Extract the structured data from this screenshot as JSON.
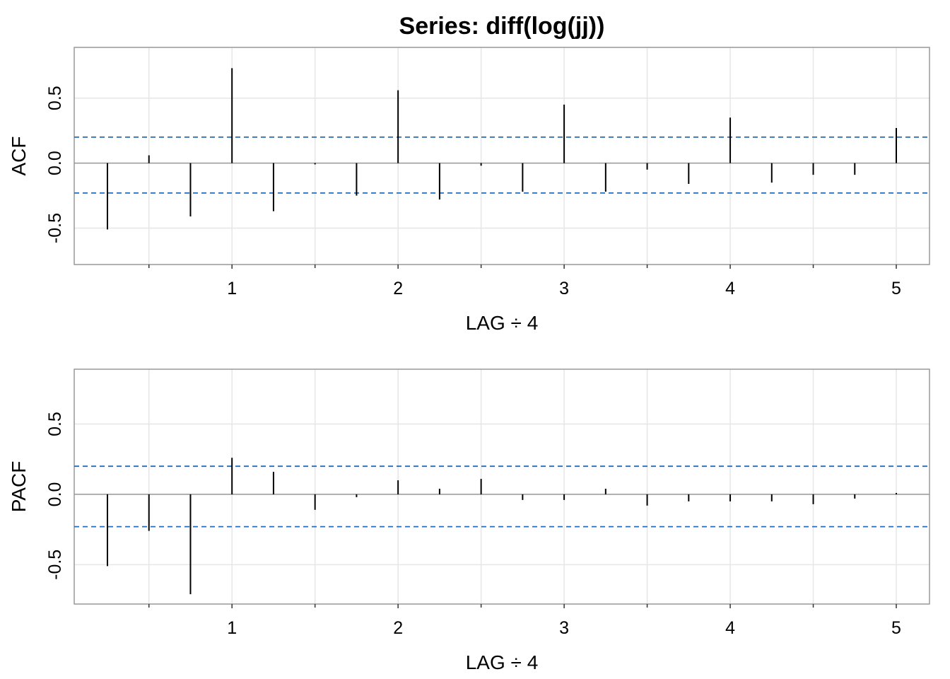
{
  "title": "Series:  diff(log(jj))",
  "colors": {
    "background": "#ffffff",
    "grid": "#e6e6e6",
    "frame": "#999999",
    "zero_line": "#9a9a9a",
    "bars": "#000000",
    "confidence_band": "#1e6ec8"
  },
  "chart_data": [
    {
      "type": "bar",
      "subtype": "autocorrelation",
      "xlabel": "LAG ÷ 4",
      "ylabel": "ACF",
      "xlim": [
        0.05,
        5.2
      ],
      "ylim": [
        -0.78,
        0.89
      ],
      "x_ticks": [
        1,
        2,
        3,
        4,
        5
      ],
      "x_tick_labels": [
        "1",
        "2",
        "3",
        "4",
        "5"
      ],
      "y_ticks": [
        -0.5,
        0.0,
        0.5
      ],
      "y_tick_labels": [
        "-0.5",
        "0.0",
        "0.5"
      ],
      "grid": true,
      "confidence_bounds": [
        0.2,
        -0.23
      ],
      "x": [
        0.25,
        0.5,
        0.75,
        1.0,
        1.25,
        1.5,
        1.75,
        2.0,
        2.25,
        2.5,
        2.75,
        3.0,
        3.25,
        3.5,
        3.75,
        4.0,
        4.25,
        4.5,
        4.75,
        5.0
      ],
      "values": [
        -0.51,
        0.06,
        -0.41,
        0.73,
        -0.37,
        -0.01,
        -0.25,
        0.56,
        -0.28,
        -0.02,
        -0.22,
        0.45,
        -0.22,
        -0.05,
        -0.16,
        0.35,
        -0.15,
        -0.09,
        -0.09,
        0.27
      ]
    },
    {
      "type": "bar",
      "subtype": "partial-autocorrelation",
      "xlabel": "LAG ÷ 4",
      "ylabel": "PACF",
      "xlim": [
        0.05,
        5.2
      ],
      "ylim": [
        -0.78,
        0.89
      ],
      "x_ticks": [
        1,
        2,
        3,
        4,
        5
      ],
      "x_tick_labels": [
        "1",
        "2",
        "3",
        "4",
        "5"
      ],
      "y_ticks": [
        -0.5,
        0.0,
        0.5
      ],
      "y_tick_labels": [
        "-0.5",
        "0.0",
        "0.5"
      ],
      "grid": true,
      "confidence_bounds": [
        0.2,
        -0.23
      ],
      "x": [
        0.25,
        0.5,
        0.75,
        1.0,
        1.25,
        1.5,
        1.75,
        2.0,
        2.25,
        2.5,
        2.75,
        3.0,
        3.25,
        3.5,
        3.75,
        4.0,
        4.25,
        4.5,
        4.75,
        5.0
      ],
      "values": [
        -0.51,
        -0.26,
        -0.71,
        0.26,
        0.16,
        -0.11,
        -0.02,
        0.1,
        0.04,
        0.11,
        -0.04,
        -0.04,
        0.04,
        -0.08,
        -0.05,
        -0.05,
        -0.05,
        -0.07,
        -0.03,
        0.01
      ]
    }
  ]
}
